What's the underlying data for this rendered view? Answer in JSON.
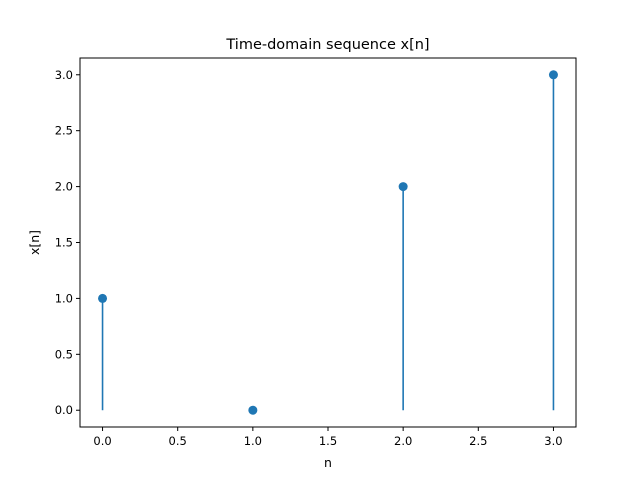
{
  "chart_data": {
    "type": "stem",
    "title": "Time-domain sequence x[n]",
    "xlabel": "n",
    "ylabel": "x[n]",
    "x": [
      0,
      1,
      2,
      3
    ],
    "y": [
      1,
      0,
      2,
      3
    ],
    "xlim": [
      -0.15,
      3.15
    ],
    "ylim": [
      -0.15,
      3.15
    ],
    "xticks": [
      0.0,
      0.5,
      1.0,
      1.5,
      2.0,
      2.5,
      3.0
    ],
    "xtick_labels": [
      "0.0",
      "0.5",
      "1.0",
      "1.5",
      "2.0",
      "2.5",
      "3.0"
    ],
    "yticks": [
      0.0,
      0.5,
      1.0,
      1.5,
      2.0,
      2.5,
      3.0
    ],
    "ytick_labels": [
      "0.0",
      "0.5",
      "1.0",
      "1.5",
      "2.0",
      "2.5",
      "3.0"
    ],
    "baseline": 0,
    "color": "#1f77b4",
    "grid": false,
    "legend": false
  }
}
